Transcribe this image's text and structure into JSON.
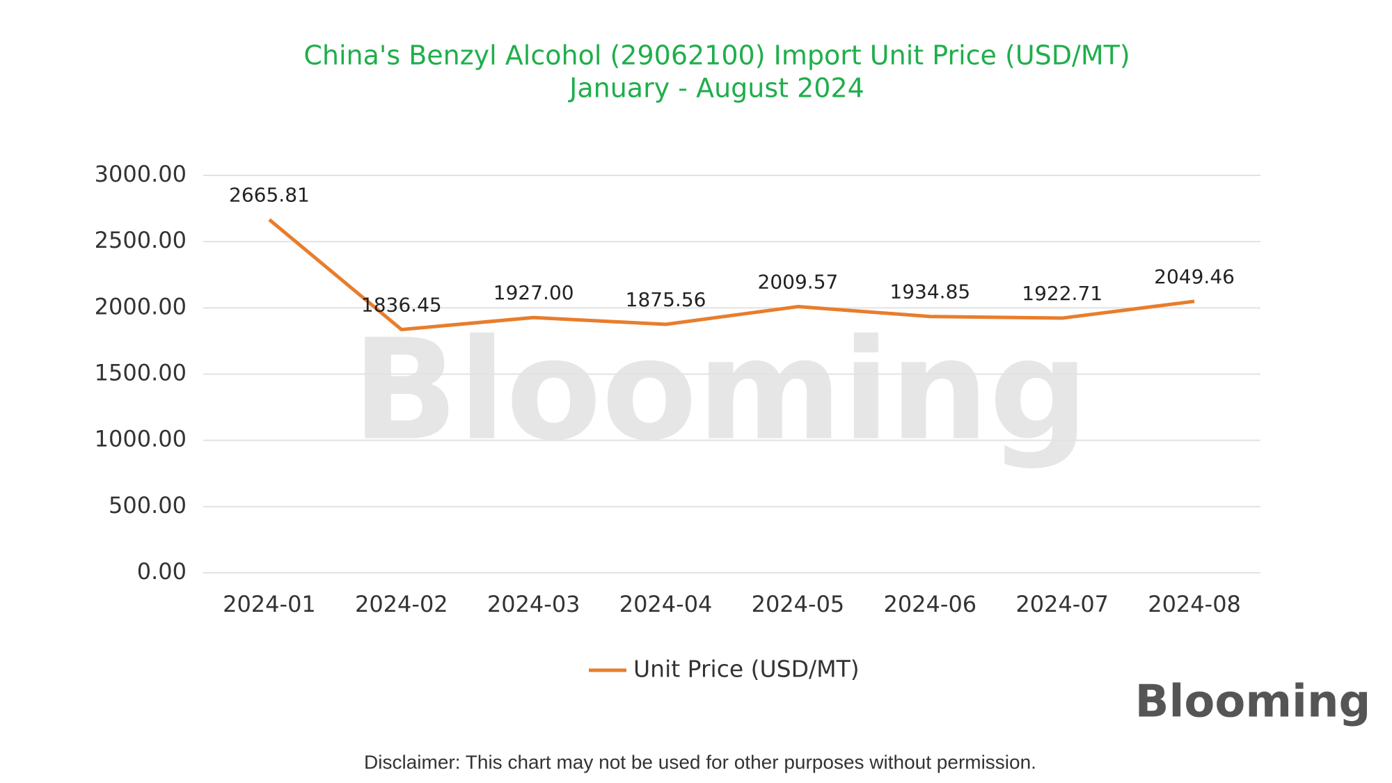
{
  "chart_data": {
    "type": "line",
    "title": "China's Benzyl Alcohol (29062100) Import Unit Price (USD/MT)",
    "subtitle": "January - August 2024",
    "categories": [
      "2024-01",
      "2024-02",
      "2024-03",
      "2024-04",
      "2024-05",
      "2024-06",
      "2024-07",
      "2024-08"
    ],
    "series": [
      {
        "name": "Unit Price (USD/MT)",
        "color": "#e87d2c",
        "values": [
          2665.81,
          1836.45,
          1927.0,
          1875.56,
          2009.57,
          1934.85,
          1922.71,
          2049.46
        ],
        "value_labels": [
          "2665.81",
          "1836.45",
          "1927.00",
          "1875.56",
          "2009.57",
          "1934.85",
          "1922.71",
          "2049.46"
        ]
      }
    ],
    "ylim": [
      0,
      3000
    ],
    "yticks": [
      {
        "value": 0,
        "label": "0.00"
      },
      {
        "value": 500,
        "label": "500.00"
      },
      {
        "value": 1000,
        "label": "1000.00"
      },
      {
        "value": 1500,
        "label": "1500.00"
      },
      {
        "value": 2000,
        "label": "2000.00"
      },
      {
        "value": 2500,
        "label": "2500.00"
      },
      {
        "value": 3000,
        "label": "3000.00"
      }
    ],
    "grid": true,
    "legend": "bottom",
    "watermark": "Blooming",
    "logo": "Blooming",
    "disclaimer": "Disclaimer: This chart may not be used for other purposes without permission."
  }
}
